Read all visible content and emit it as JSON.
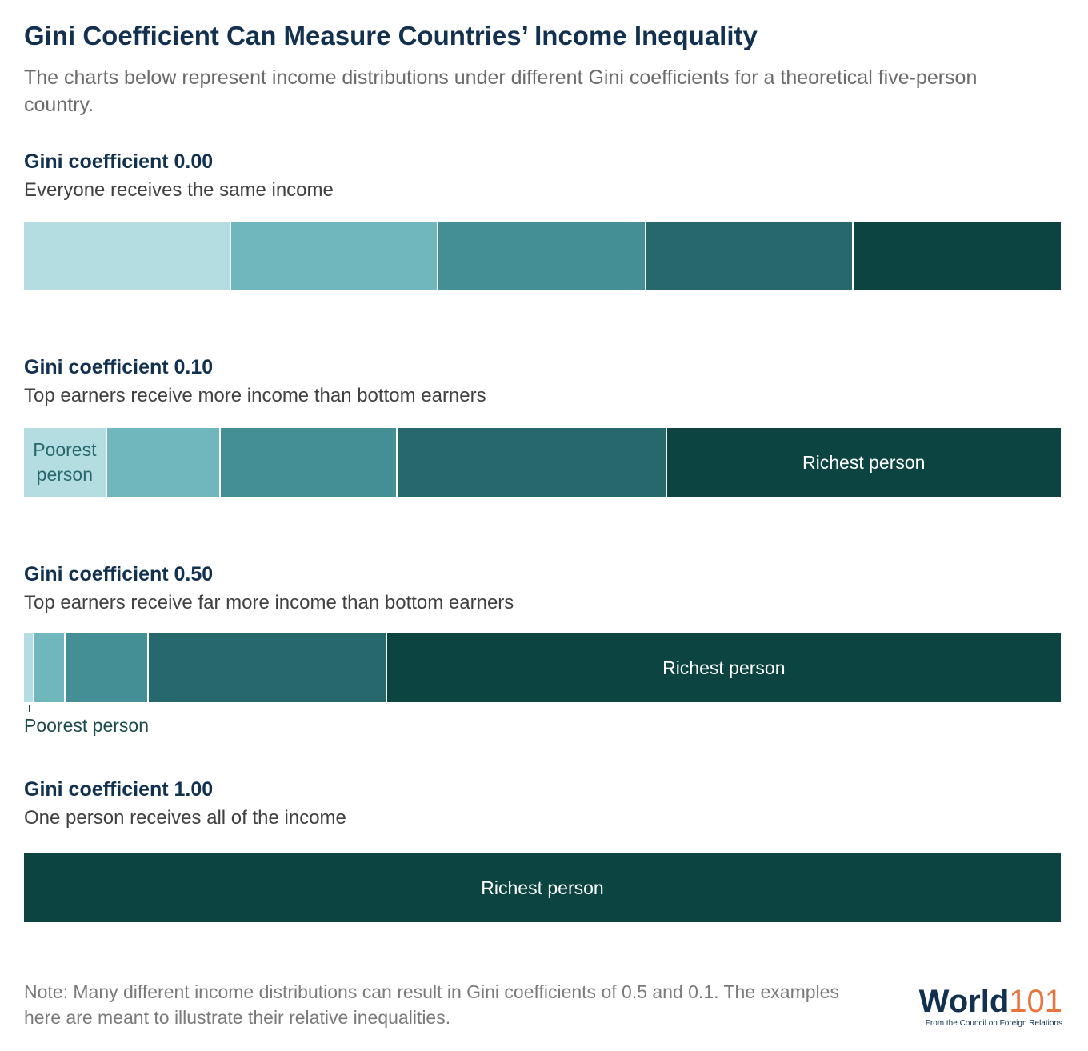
{
  "title": "Gini Coefficient Can Measure Countries’ Income Inequality",
  "subtitle": "The charts below represent income distributions under different Gini coefficients for a theoretical five-person country.",
  "note": "Note: Many different income distributions can result in Gini coefficients of 0.5 and 0.1. The examples here are meant to illustrate their relative inequalities.",
  "logo": {
    "word_main": "World",
    "word_num": "101",
    "tagline": "From the Council on Foreign Relations"
  },
  "colors": {
    "person1": "#b4dde1",
    "person2": "#6fb6bd",
    "person3": "#438f95",
    "person4": "#27686d",
    "person5": "#0c4442"
  },
  "chart_data": [
    {
      "type": "bar",
      "title": "Gini coefficient 0.00",
      "subtitle": "Everyone receives the same income",
      "stacked": true,
      "orientation": "horizontal",
      "unit": "share of total income",
      "values": [
        0.2,
        0.2,
        0.2,
        0.2,
        0.2
      ],
      "labels": [
        "",
        "",
        "",
        "",
        ""
      ],
      "outside_label": ""
    },
    {
      "type": "bar",
      "title": "Gini coefficient 0.10",
      "subtitle": "Top earners receive more income than bottom earners",
      "stacked": true,
      "orientation": "horizontal",
      "unit": "share of total income",
      "values": [
        0.08,
        0.11,
        0.17,
        0.26,
        0.38
      ],
      "labels": [
        "Poorest person",
        "",
        "",
        "",
        "Richest person"
      ],
      "outside_label": ""
    },
    {
      "type": "bar",
      "title": "Gini coefficient 0.50",
      "subtitle": "Top earners receive far more income than bottom earners",
      "stacked": true,
      "orientation": "horizontal",
      "unit": "share of total income",
      "values": [
        0.01,
        0.03,
        0.08,
        0.23,
        0.65
      ],
      "labels": [
        "",
        "",
        "",
        "",
        "Richest person"
      ],
      "outside_label": "Poorest person"
    },
    {
      "type": "bar",
      "title": "Gini coefficient 1.00",
      "subtitle": "One person receives all of the income",
      "stacked": true,
      "orientation": "horizontal",
      "unit": "share of total income",
      "values": [
        0,
        0,
        0,
        0,
        1.0
      ],
      "labels": [
        "",
        "",
        "",
        "",
        "Richest person"
      ],
      "outside_label": ""
    }
  ]
}
